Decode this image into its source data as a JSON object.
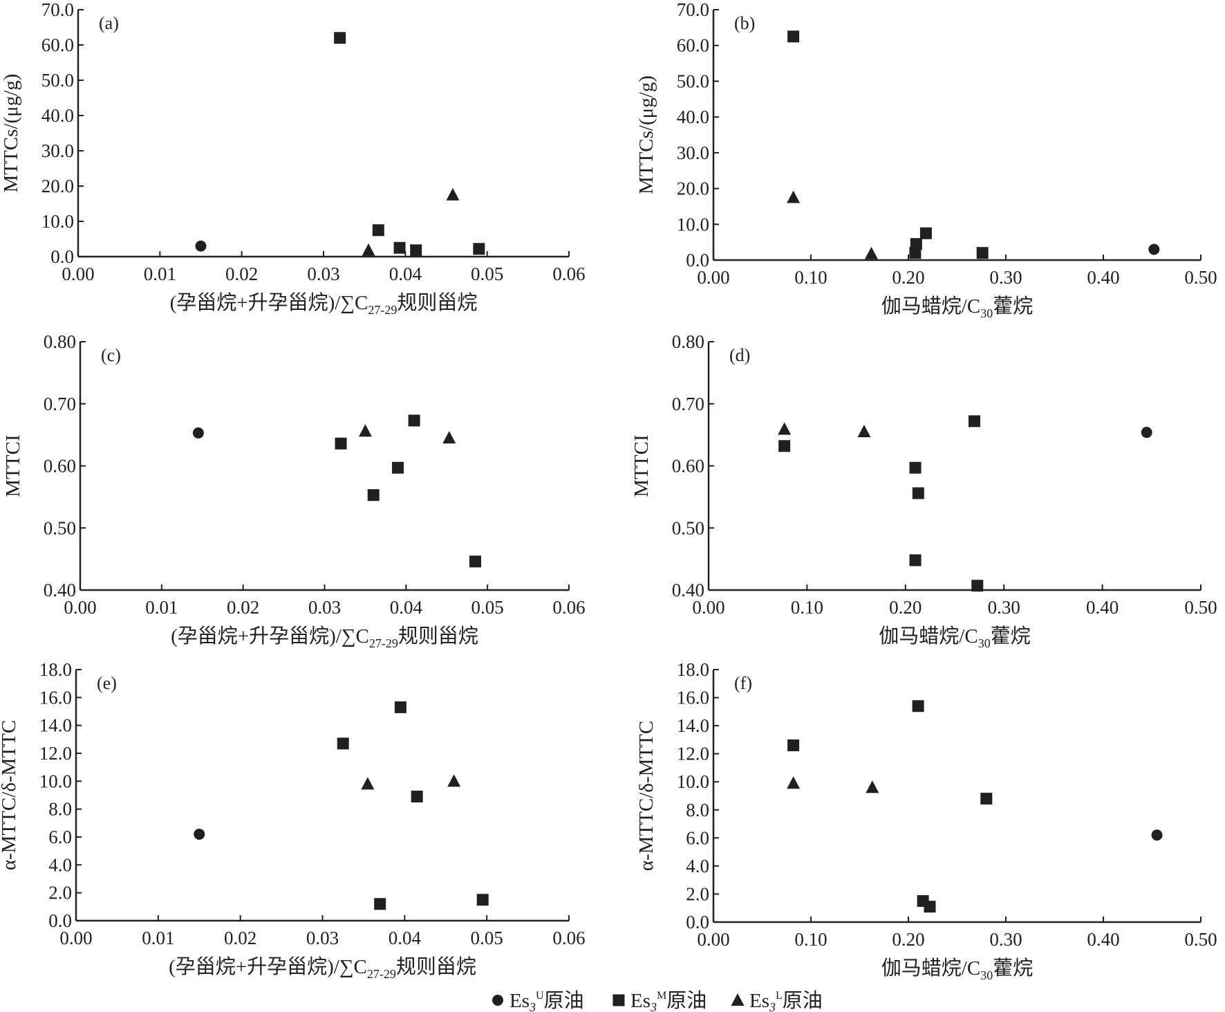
{
  "chart_data": [
    {
      "type": "scatter",
      "panel_label": "(a)",
      "xlabel": "(孕甾烷+升孕甾烷)/∑C27-29规则甾烷",
      "xlabel_parts": [
        "(孕甾烷+升孕甾烷)/∑C",
        "27-29",
        "规则甾烷"
      ],
      "ylabel": "MTTCs/(μg/g)",
      "xlim": [
        0,
        0.06
      ],
      "ylim": [
        0,
        70
      ],
      "xticks": [
        "0.00",
        "0.01",
        "0.02",
        "0.03",
        "0.04",
        "0.05",
        "0.06"
      ],
      "yticks": [
        "0.0",
        "10.0",
        "20.0",
        "30.0",
        "40.0",
        "50.0",
        "60.0",
        "70.0"
      ],
      "series": [
        {
          "name": "Es3U原油",
          "marker": "circle",
          "points": [
            [
              0.015,
              3.0
            ]
          ]
        },
        {
          "name": "Es3M原油",
          "marker": "square",
          "points": [
            [
              0.032,
              62.0
            ],
            [
              0.0367,
              7.5
            ],
            [
              0.0393,
              2.5
            ],
            [
              0.0413,
              1.8
            ],
            [
              0.049,
              2.2
            ]
          ]
        },
        {
          "name": "Es3L原油",
          "marker": "triangle",
          "points": [
            [
              0.0355,
              1.8
            ],
            [
              0.0458,
              17.5
            ]
          ]
        }
      ]
    },
    {
      "type": "scatter",
      "panel_label": "(b)",
      "xlabel": "伽马蜡烷/C30藿烷",
      "xlabel_parts": [
        "伽马蜡烷/C",
        "30",
        "藿烷"
      ],
      "ylabel": "MTTCs/(μg/g)",
      "xlim": [
        0,
        0.5
      ],
      "ylim": [
        0,
        70
      ],
      "xticks": [
        "0.00",
        "0.10",
        "0.20",
        "0.30",
        "0.40",
        "0.50"
      ],
      "yticks": [
        "0.0",
        "10.0",
        "20.0",
        "30.0",
        "40.0",
        "50.0",
        "60.0",
        "70.0"
      ],
      "series": [
        {
          "name": "Es3U原油",
          "marker": "circle",
          "points": [
            [
              0.452,
              3.0
            ]
          ]
        },
        {
          "name": "Es3M原油",
          "marker": "square",
          "points": [
            [
              0.082,
              62.5
            ],
            [
              0.207,
              2.0
            ],
            [
              0.208,
              4.5
            ],
            [
              0.218,
              7.5
            ],
            [
              0.276,
              2.0
            ]
          ]
        },
        {
          "name": "Es3L原油",
          "marker": "triangle",
          "points": [
            [
              0.082,
              17.5
            ],
            [
              0.162,
              1.8
            ]
          ]
        }
      ]
    },
    {
      "type": "scatter",
      "panel_label": "(c)",
      "xlabel": "(孕甾烷+升孕甾烷)/∑C27-29规则甾烷",
      "xlabel_parts": [
        "(孕甾烷+升孕甾烷)/∑C",
        "27-29",
        "规则甾烷"
      ],
      "ylabel": "MTTCI",
      "xlim": [
        0,
        0.06
      ],
      "ylim": [
        0.4,
        0.8
      ],
      "xticks": [
        "0.00",
        "0.01",
        "0.02",
        "0.03",
        "0.04",
        "0.05",
        "0.06"
      ],
      "yticks": [
        "0.40",
        "0.50",
        "0.60",
        "0.70",
        "0.80"
      ],
      "series": [
        {
          "name": "Es3U原油",
          "marker": "circle",
          "points": [
            [
              0.0145,
              0.653
            ]
          ]
        },
        {
          "name": "Es3M原油",
          "marker": "square",
          "points": [
            [
              0.032,
              0.636
            ],
            [
              0.036,
              0.553
            ],
            [
              0.039,
              0.597
            ],
            [
              0.041,
              0.673
            ],
            [
              0.0485,
              0.446
            ]
          ]
        },
        {
          "name": "Es3L原油",
          "marker": "triangle",
          "points": [
            [
              0.035,
              0.656
            ],
            [
              0.0453,
              0.645
            ]
          ]
        }
      ]
    },
    {
      "type": "scatter",
      "panel_label": "(d)",
      "xlabel": "伽马蜡烷/C30藿烷",
      "xlabel_parts": [
        "伽马蜡烷/C",
        "30",
        "藿烷"
      ],
      "ylabel": "MTTCI",
      "xlim": [
        0,
        0.5
      ],
      "ylim": [
        0.4,
        0.8
      ],
      "xticks": [
        "0.00",
        "0.10",
        "0.20",
        "0.30",
        "0.40",
        "0.50"
      ],
      "yticks": [
        "0.40",
        "0.50",
        "0.60",
        "0.70",
        "0.80"
      ],
      "series": [
        {
          "name": "Es3U原油",
          "marker": "circle",
          "points": [
            [
              0.445,
              0.654
            ]
          ]
        },
        {
          "name": "Es3M原油",
          "marker": "square",
          "points": [
            [
              0.077,
              0.632
            ],
            [
              0.21,
              0.597
            ],
            [
              0.213,
              0.556
            ],
            [
              0.21,
              0.448
            ],
            [
              0.27,
              0.672
            ],
            [
              0.273,
              0.407
            ]
          ]
        },
        {
          "name": "Es3L原油",
          "marker": "triangle",
          "points": [
            [
              0.077,
              0.659
            ],
            [
              0.158,
              0.655
            ]
          ]
        }
      ]
    },
    {
      "type": "scatter",
      "panel_label": "(e)",
      "xlabel": "(孕甾烷+升孕甾烷)/∑C27-29规则甾烷",
      "xlabel_parts": [
        "(孕甾烷+升孕甾烷)/∑C",
        "27-29",
        "规则甾烷"
      ],
      "ylabel": "α-MTTC/δ-MTTC",
      "xlim": [
        0,
        0.06
      ],
      "ylim": [
        0,
        18
      ],
      "xticks": [
        "0.00",
        "0.01",
        "0.02",
        "0.03",
        "0.04",
        "0.05",
        "0.06"
      ],
      "yticks": [
        "0.0",
        "2.0",
        "4.0",
        "6.0",
        "8.0",
        "10.0",
        "12.0",
        "14.0",
        "16.0",
        "18.0"
      ],
      "series": [
        {
          "name": "Es3U原油",
          "marker": "circle",
          "points": [
            [
              0.015,
              6.2
            ]
          ]
        },
        {
          "name": "Es3M原油",
          "marker": "square",
          "points": [
            [
              0.0325,
              12.7
            ],
            [
              0.0395,
              15.3
            ],
            [
              0.0415,
              8.9
            ],
            [
              0.037,
              1.2
            ],
            [
              0.0495,
              1.5
            ]
          ]
        },
        {
          "name": "Es3L原油",
          "marker": "triangle",
          "points": [
            [
              0.0355,
              9.8
            ],
            [
              0.046,
              10.0
            ]
          ]
        }
      ]
    },
    {
      "type": "scatter",
      "panel_label": "(f)",
      "xlabel": "伽马蜡烷/C30藿烷",
      "xlabel_parts": [
        "伽马蜡烷/C",
        "30",
        "藿烷"
      ],
      "ylabel": "α-MTTC/δ-MTTC",
      "xlim": [
        0,
        0.5
      ],
      "ylim": [
        0,
        18
      ],
      "xticks": [
        "0.00",
        "0.10",
        "0.20",
        "0.30",
        "0.40",
        "0.50"
      ],
      "yticks": [
        "0.0",
        "2.0",
        "4.0",
        "6.0",
        "8.0",
        "10.0",
        "12.0",
        "14.0",
        "16.0",
        "18.0"
      ],
      "series": [
        {
          "name": "Es3U原油",
          "marker": "circle",
          "points": [
            [
              0.455,
              6.2
            ]
          ]
        },
        {
          "name": "Es3M原油",
          "marker": "square",
          "points": [
            [
              0.082,
              12.6
            ],
            [
              0.21,
              15.4
            ],
            [
              0.28,
              8.8
            ],
            [
              0.215,
              1.5
            ],
            [
              0.222,
              1.1
            ]
          ]
        },
        {
          "name": "Es3L原油",
          "marker": "triangle",
          "points": [
            [
              0.082,
              9.9
            ],
            [
              0.163,
              9.6
            ]
          ]
        }
      ]
    }
  ],
  "legend": {
    "placement": "bottom-center",
    "items": [
      {
        "marker": "circle",
        "prefix": "Es",
        "sub": "3",
        "sup": "U",
        "suffix": "原油"
      },
      {
        "marker": "square",
        "prefix": "Es",
        "sub": "3",
        "sup": "M",
        "suffix": "原油"
      },
      {
        "marker": "triangle",
        "prefix": "Es",
        "sub": "3",
        "sup": "L",
        "suffix": "原油"
      }
    ]
  },
  "colors": {
    "ink": "#231f20"
  }
}
